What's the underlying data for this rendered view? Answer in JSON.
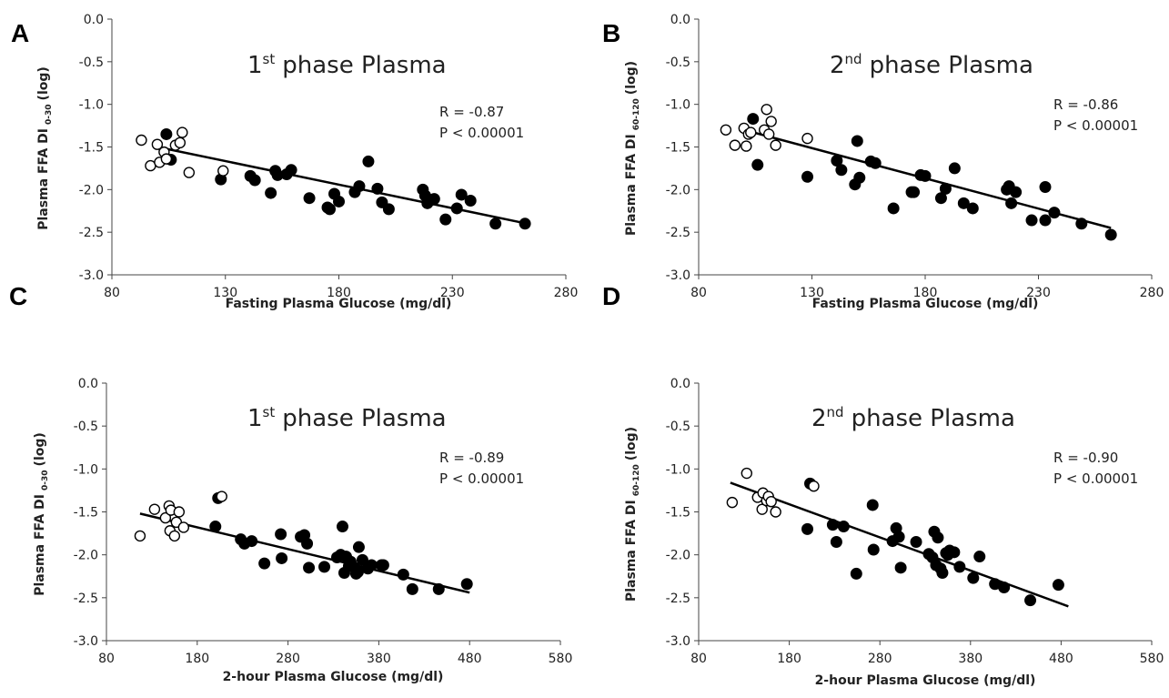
{
  "chart_data": [
    {
      "panel": "A",
      "type": "scatter",
      "title_main": "1",
      "title_sup": "st",
      "title_rest": "phase Plasma",
      "xlabel": "Fasting Plasma Glucose (mg/dl)",
      "ylabel_main": "Plasma FFA DI",
      "ylabel_sub": "0-30",
      "ylabel_unit": "(log)",
      "xlim": [
        80,
        280
      ],
      "ylim": [
        -3.0,
        0.0
      ],
      "xticks": [
        "80",
        "130",
        "180",
        "230",
        "280"
      ],
      "yticks": [
        "0.0",
        "-0.5",
        "-1.0",
        "-1.5",
        "-2.0",
        "-2.5",
        "-3.0"
      ],
      "stat_r": "R = -0.87",
      "stat_p": "P < 0.00001",
      "fit": [
        [
          100,
          -1.5
        ],
        [
          263,
          -2.4
        ]
      ],
      "open_points": [
        [
          93,
          -1.42
        ],
        [
          97,
          -1.72
        ],
        [
          100,
          -1.47
        ],
        [
          101,
          -1.68
        ],
        [
          103,
          -1.56
        ],
        [
          104,
          -1.64
        ],
        [
          108,
          -1.48
        ],
        [
          110,
          -1.45
        ],
        [
          111,
          -1.33
        ],
        [
          114,
          -1.8
        ],
        [
          129,
          -1.78
        ]
      ],
      "filled_points": [
        [
          104,
          -1.35
        ],
        [
          106,
          -1.65
        ],
        [
          128,
          -1.88
        ],
        [
          141,
          -1.84
        ],
        [
          143,
          -1.89
        ],
        [
          150,
          -2.04
        ],
        [
          152,
          -1.78
        ],
        [
          153,
          -1.83
        ],
        [
          157,
          -1.82
        ],
        [
          159,
          -1.77
        ],
        [
          167,
          -2.1
        ],
        [
          175,
          -2.21
        ],
        [
          176,
          -2.23
        ],
        [
          178,
          -2.05
        ],
        [
          180,
          -2.14
        ],
        [
          187,
          -2.03
        ],
        [
          189,
          -1.96
        ],
        [
          193,
          -1.67
        ],
        [
          197,
          -1.99
        ],
        [
          199,
          -2.15
        ],
        [
          202,
          -2.23
        ],
        [
          217,
          -2.0
        ],
        [
          218,
          -2.07
        ],
        [
          219,
          -2.16
        ],
        [
          221,
          -2.12
        ],
        [
          222,
          -2.11
        ],
        [
          227,
          -2.35
        ],
        [
          232,
          -2.22
        ],
        [
          234,
          -2.06
        ],
        [
          238,
          -2.13
        ],
        [
          249,
          -2.4
        ],
        [
          262,
          -2.4
        ]
      ]
    },
    {
      "panel": "B",
      "type": "scatter",
      "title_main": "2",
      "title_sup": "nd",
      "title_rest": "phase Plasma",
      "xlabel": "Fasting Plasma Glucose (mg/dl)",
      "ylabel_main": "Plasma FFA DI",
      "ylabel_sub": "60-120",
      "ylabel_unit": "(log)",
      "xlim": [
        80,
        280
      ],
      "ylim": [
        -3.0,
        0.0
      ],
      "xticks": [
        "80",
        "130",
        "180",
        "230",
        "280"
      ],
      "yticks": [
        "0.0",
        "-0.5",
        "-1.0",
        "-1.5",
        "-2.0",
        "-2.5",
        "-3.0"
      ],
      "stat_r": "R = -0.86",
      "stat_p": "P < 0.00001",
      "fit": [
        [
          100,
          -1.3
        ],
        [
          262,
          -2.45
        ]
      ],
      "open_points": [
        [
          92,
          -1.3
        ],
        [
          96,
          -1.48
        ],
        [
          100,
          -1.28
        ],
        [
          101,
          -1.49
        ],
        [
          102,
          -1.35
        ],
        [
          103,
          -1.33
        ],
        [
          109,
          -1.3
        ],
        [
          110,
          -1.06
        ],
        [
          111,
          -1.35
        ],
        [
          112,
          -1.2
        ],
        [
          114,
          -1.48
        ],
        [
          128,
          -1.4
        ]
      ],
      "filled_points": [
        [
          104,
          -1.17
        ],
        [
          106,
          -1.71
        ],
        [
          128,
          -1.85
        ],
        [
          141,
          -1.66
        ],
        [
          143,
          -1.77
        ],
        [
          149,
          -1.94
        ],
        [
          150,
          -1.43
        ],
        [
          151,
          -1.86
        ],
        [
          156,
          -1.67
        ],
        [
          158,
          -1.69
        ],
        [
          166,
          -2.22
        ],
        [
          174,
          -2.03
        ],
        [
          175,
          -2.03
        ],
        [
          178,
          -1.83
        ],
        [
          180,
          -1.84
        ],
        [
          187,
          -2.1
        ],
        [
          189,
          -1.99
        ],
        [
          193,
          -1.75
        ],
        [
          197,
          -2.16
        ],
        [
          201,
          -2.22
        ],
        [
          216,
          -2.0
        ],
        [
          217,
          -1.96
        ],
        [
          218,
          -2.16
        ],
        [
          220,
          -2.03
        ],
        [
          227,
          -2.36
        ],
        [
          233,
          -2.36
        ],
        [
          233,
          -1.97
        ],
        [
          237,
          -2.27
        ],
        [
          249,
          -2.4
        ],
        [
          262,
          -2.53
        ]
      ]
    },
    {
      "panel": "C",
      "type": "scatter",
      "title_main": "1",
      "title_sup": "st",
      "title_rest": "phase Plasma",
      "xlabel": "2-hour Plasma Glucose (mg/dl)",
      "ylabel_main": "Plasma FFA DI",
      "ylabel_sub": "0-30",
      "ylabel_unit": "(log)",
      "xlim": [
        80,
        580
      ],
      "ylim": [
        -3.0,
        0.0
      ],
      "xticks": [
        "80",
        "180",
        "280",
        "380",
        "480",
        "580"
      ],
      "yticks": [
        "0.0",
        "-0.5",
        "-1.0",
        "-1.5",
        "-2.0",
        "-2.5",
        "-3.0"
      ],
      "stat_r": "R = -0.89",
      "stat_p": "P < 0.00001",
      "fit": [
        [
          117,
          -1.52
        ],
        [
          480,
          -2.44
        ]
      ],
      "open_points": [
        [
          117,
          -1.78
        ],
        [
          133,
          -1.47
        ],
        [
          145,
          -1.57
        ],
        [
          149,
          -1.43
        ],
        [
          150,
          -1.72
        ],
        [
          151,
          -1.48
        ],
        [
          155,
          -1.78
        ],
        [
          157,
          -1.62
        ],
        [
          160,
          -1.5
        ],
        [
          165,
          -1.68
        ],
        [
          207,
          -1.32
        ]
      ],
      "filled_points": [
        [
          200,
          -1.67
        ],
        [
          203,
          -1.34
        ],
        [
          228,
          -1.82
        ],
        [
          232,
          -1.87
        ],
        [
          240,
          -1.84
        ],
        [
          254,
          -2.1
        ],
        [
          272,
          -1.76
        ],
        [
          273,
          -2.04
        ],
        [
          294,
          -1.79
        ],
        [
          298,
          -1.77
        ],
        [
          301,
          -1.87
        ],
        [
          303,
          -2.15
        ],
        [
          320,
          -2.14
        ],
        [
          334,
          -2.03
        ],
        [
          338,
          -2.0
        ],
        [
          340,
          -1.67
        ],
        [
          342,
          -2.21
        ],
        [
          344,
          -2.02
        ],
        [
          347,
          -2.13
        ],
        [
          349,
          -2.08
        ],
        [
          353,
          -2.15
        ],
        [
          355,
          -2.22
        ],
        [
          357,
          -2.2
        ],
        [
          358,
          -1.91
        ],
        [
          362,
          -2.06
        ],
        [
          368,
          -2.16
        ],
        [
          372,
          -2.12
        ],
        [
          383,
          -2.12
        ],
        [
          385,
          -2.12
        ],
        [
          407,
          -2.23
        ],
        [
          417,
          -2.4
        ],
        [
          446,
          -2.4
        ],
        [
          477,
          -2.34
        ]
      ]
    },
    {
      "panel": "D",
      "type": "scatter",
      "title_main": "2",
      "title_sup": "nd",
      "title_rest": "phase Plasma",
      "xlabel": "2-hour Plasma Glucose (mg/dl)",
      "ylabel_main": "Plasma FFA DI",
      "ylabel_sub": "60-120",
      "ylabel_unit": "(log)",
      "xlim": [
        80,
        580
      ],
      "ylim": [
        -3.0,
        0.0
      ],
      "xticks": [
        "80",
        "180",
        "280",
        "380",
        "480",
        "580"
      ],
      "yticks": [
        "0.0",
        "-0.5",
        "-1.0",
        "-1.5",
        "-2.0",
        "-2.5",
        "-3.0"
      ],
      "stat_r": "R = -0.90",
      "stat_p": "P < 0.00001",
      "fit": [
        [
          115,
          -1.16
        ],
        [
          488,
          -2.6
        ]
      ],
      "open_points": [
        [
          117,
          -1.39
        ],
        [
          133,
          -1.05
        ],
        [
          145,
          -1.33
        ],
        [
          150,
          -1.47
        ],
        [
          151,
          -1.28
        ],
        [
          155,
          -1.37
        ],
        [
          157,
          -1.32
        ],
        [
          160,
          -1.38
        ],
        [
          165,
          -1.5
        ],
        [
          207,
          -1.2
        ]
      ],
      "filled_points": [
        [
          200,
          -1.7
        ],
        [
          203,
          -1.17
        ],
        [
          228,
          -1.65
        ],
        [
          232,
          -1.85
        ],
        [
          240,
          -1.67
        ],
        [
          254,
          -2.22
        ],
        [
          272,
          -1.42
        ],
        [
          273,
          -1.94
        ],
        [
          294,
          -1.84
        ],
        [
          298,
          -1.69
        ],
        [
          301,
          -1.79
        ],
        [
          303,
          -2.15
        ],
        [
          320,
          -1.85
        ],
        [
          334,
          -1.99
        ],
        [
          338,
          -2.03
        ],
        [
          340,
          -1.73
        ],
        [
          342,
          -2.12
        ],
        [
          344,
          -1.8
        ],
        [
          347,
          -2.16
        ],
        [
          349,
          -2.21
        ],
        [
          353,
          -1.98
        ],
        [
          355,
          -2.0
        ],
        [
          357,
          -1.95
        ],
        [
          362,
          -1.97
        ],
        [
          368,
          -2.14
        ],
        [
          383,
          -2.27
        ],
        [
          390,
          -2.02
        ],
        [
          407,
          -2.34
        ],
        [
          417,
          -2.38
        ],
        [
          446,
          -2.53
        ],
        [
          477,
          -2.35
        ]
      ]
    }
  ]
}
